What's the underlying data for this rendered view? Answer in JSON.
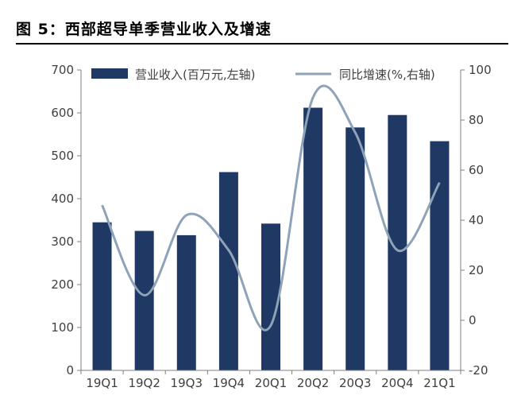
{
  "figure": {
    "title": "图 5：西部超导单季营业收入及增速"
  },
  "chart_data": {
    "type": "bar",
    "categories": [
      "19Q1",
      "19Q2",
      "19Q3",
      "19Q4",
      "20Q1",
      "20Q2",
      "20Q3",
      "20Q4",
      "21Q1"
    ],
    "series": [
      {
        "name": "营业收入(百万元,左轴)",
        "type": "bar",
        "axis": "left",
        "color": "#1f3864",
        "values": [
          345,
          325,
          315,
          462,
          342,
          612,
          566,
          595,
          534
        ]
      },
      {
        "name": "同比增速(%,右轴)",
        "type": "line",
        "axis": "right",
        "color": "#8ea2b8",
        "smooth": true,
        "values": [
          46,
          10,
          42,
          28,
          -2,
          89,
          75,
          28,
          55
        ]
      }
    ],
    "y_left": {
      "min": 0,
      "max": 700,
      "ticks": [
        0,
        100,
        200,
        300,
        400,
        500,
        600,
        700
      ]
    },
    "y_right": {
      "min": -20,
      "max": 100,
      "ticks": [
        -20,
        0,
        20,
        40,
        60,
        80,
        100
      ]
    },
    "grid": false,
    "legend_position": "top"
  }
}
